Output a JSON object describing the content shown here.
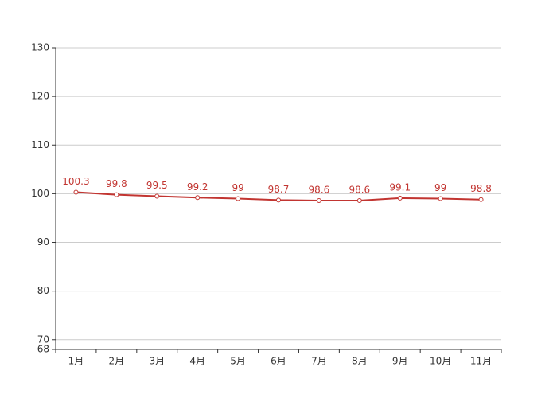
{
  "chart_data": {
    "type": "line",
    "categories": [
      "1月",
      "2月",
      "3月",
      "4月",
      "5月",
      "6月",
      "7月",
      "8月",
      "9月",
      "10月",
      "11月"
    ],
    "series": [
      {
        "color": "#c23531",
        "values": [
          100.3,
          99.8,
          99.5,
          99.2,
          99,
          98.7,
          98.6,
          98.6,
          99.1,
          99,
          98.8
        ]
      }
    ],
    "ylim": [
      68,
      130
    ],
    "yticks": [
      68,
      70,
      80,
      90,
      100,
      110,
      120,
      130
    ],
    "grid": true
  }
}
